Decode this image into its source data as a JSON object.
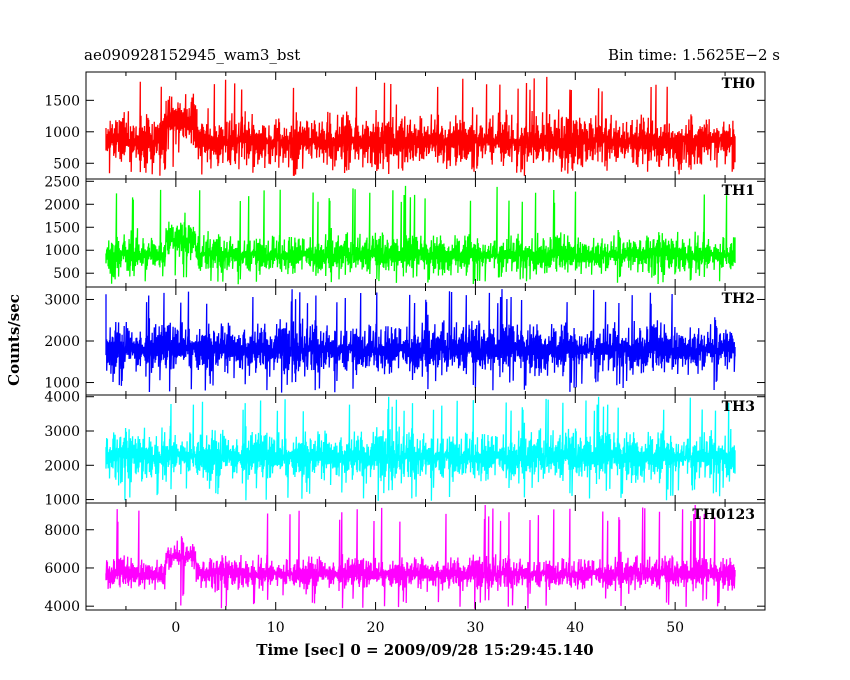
{
  "header": {
    "title": "ae090928152945_wam3_bst",
    "bin_time": "Bin time: 1.5625E−2 s"
  },
  "chart_data": {
    "type": "line",
    "title": "ae090928152945_wam3_bst",
    "subtitle": "Bin time: 1.5625E−2 s",
    "xlabel": "Time [sec] 0 = 2009/09/28 15:29:45.140",
    "ylabel": "Counts/sec",
    "xlim": [
      -9,
      59
    ],
    "data_xrange": [
      -7.0,
      56.0
    ],
    "x_ticks": [
      0,
      10,
      20,
      30,
      40,
      50
    ],
    "grid": false,
    "panels": [
      {
        "name": "TH0",
        "color": "#ff0000",
        "ylim": [
          250,
          1950
        ],
        "y_ticks": [
          500,
          1000,
          1500
        ],
        "baseline": 850,
        "noise_amplitude": 550,
        "spike_max": 1900,
        "dip_min": 300,
        "burst": {
          "start": -1.0,
          "end": 2.0,
          "level": 1150
        }
      },
      {
        "name": "TH1",
        "color": "#00ff00",
        "ylim": [
          200,
          2550
        ],
        "y_ticks": [
          500,
          1000,
          1500,
          2000,
          2500
        ],
        "baseline": 900,
        "noise_amplitude": 560,
        "spike_max": 2400,
        "dip_min": 250,
        "burst": {
          "start": -1.0,
          "end": 2.0,
          "level": 1250
        }
      },
      {
        "name": "TH2",
        "color": "#0000ff",
        "ylim": [
          700,
          3300
        ],
        "y_ticks": [
          1000,
          2000,
          3000
        ],
        "baseline": 1800,
        "noise_amplitude": 800,
        "spike_max": 3250,
        "dip_min": 750,
        "burst": {
          "start": -1.0,
          "end": 2.0,
          "level": 1850
        }
      },
      {
        "name": "TH3",
        "color": "#00ffff",
        "ylim": [
          900,
          4050
        ],
        "y_ticks": [
          1000,
          2000,
          3000,
          4000
        ],
        "baseline": 2250,
        "noise_amplitude": 950,
        "spike_max": 4000,
        "dip_min": 950,
        "burst": {
          "start": -1.0,
          "end": 2.0,
          "level": 2300
        }
      },
      {
        "name": "TH0123",
        "color": "#ff00ff",
        "ylim": [
          3800,
          9400
        ],
        "y_ticks": [
          4000,
          6000,
          8000
        ],
        "baseline": 5700,
        "noise_amplitude": 1100,
        "spike_max": 9300,
        "dip_min": 3850,
        "burst": {
          "start": -1.0,
          "end": 2.0,
          "level": 6600
        }
      }
    ]
  }
}
